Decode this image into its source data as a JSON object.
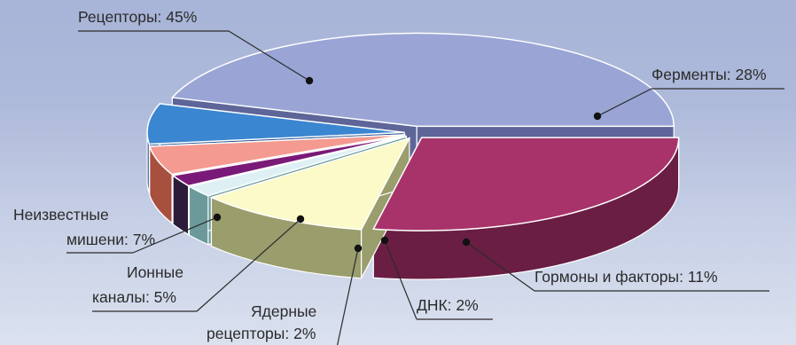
{
  "chart_data": {
    "type": "pie",
    "style": "3d-exploded",
    "title": "",
    "slices": [
      {
        "name": "Рецепторы",
        "value": 45,
        "label_lines": [
          "Рецепторы: 45%"
        ],
        "color": "#9aa5d6",
        "side_color": "#5e6598"
      },
      {
        "name": "Ферменты",
        "value": 28,
        "label_lines": [
          "Ферменты: 28%"
        ],
        "color": "#a8336a",
        "side_color": "#6a1e43"
      },
      {
        "name": "Гормоны и факторы",
        "value": 11,
        "label_lines": [
          "Гормоны и факторы: 11%"
        ],
        "color": "#fbfac8",
        "side_color": "#9a9d6c"
      },
      {
        "name": "ДНК",
        "value": 2,
        "label_lines": [
          "ДНК: 2%"
        ],
        "color": "#dff0f4",
        "side_color": "#6c9a9a"
      },
      {
        "name": "Ядерные рецепторы",
        "value": 2,
        "label_lines": [
          "Ядерные",
          "рецепторы: 2%"
        ],
        "color": "#7a1a78",
        "side_color": "#2c1c3a"
      },
      {
        "name": "Ионные каналы",
        "value": 5,
        "label_lines": [
          "Ионные",
          "каналы: 5%"
        ],
        "color": "#f49a90",
        "side_color": "#a8503e"
      },
      {
        "name": "Неизвестные мишени",
        "value": 7,
        "label_lines": [
          "Неизвестные",
          "мишени: 7%"
        ],
        "color": "#3b86d0",
        "side_color": "#1f4a8c"
      }
    ],
    "legend": "none"
  }
}
